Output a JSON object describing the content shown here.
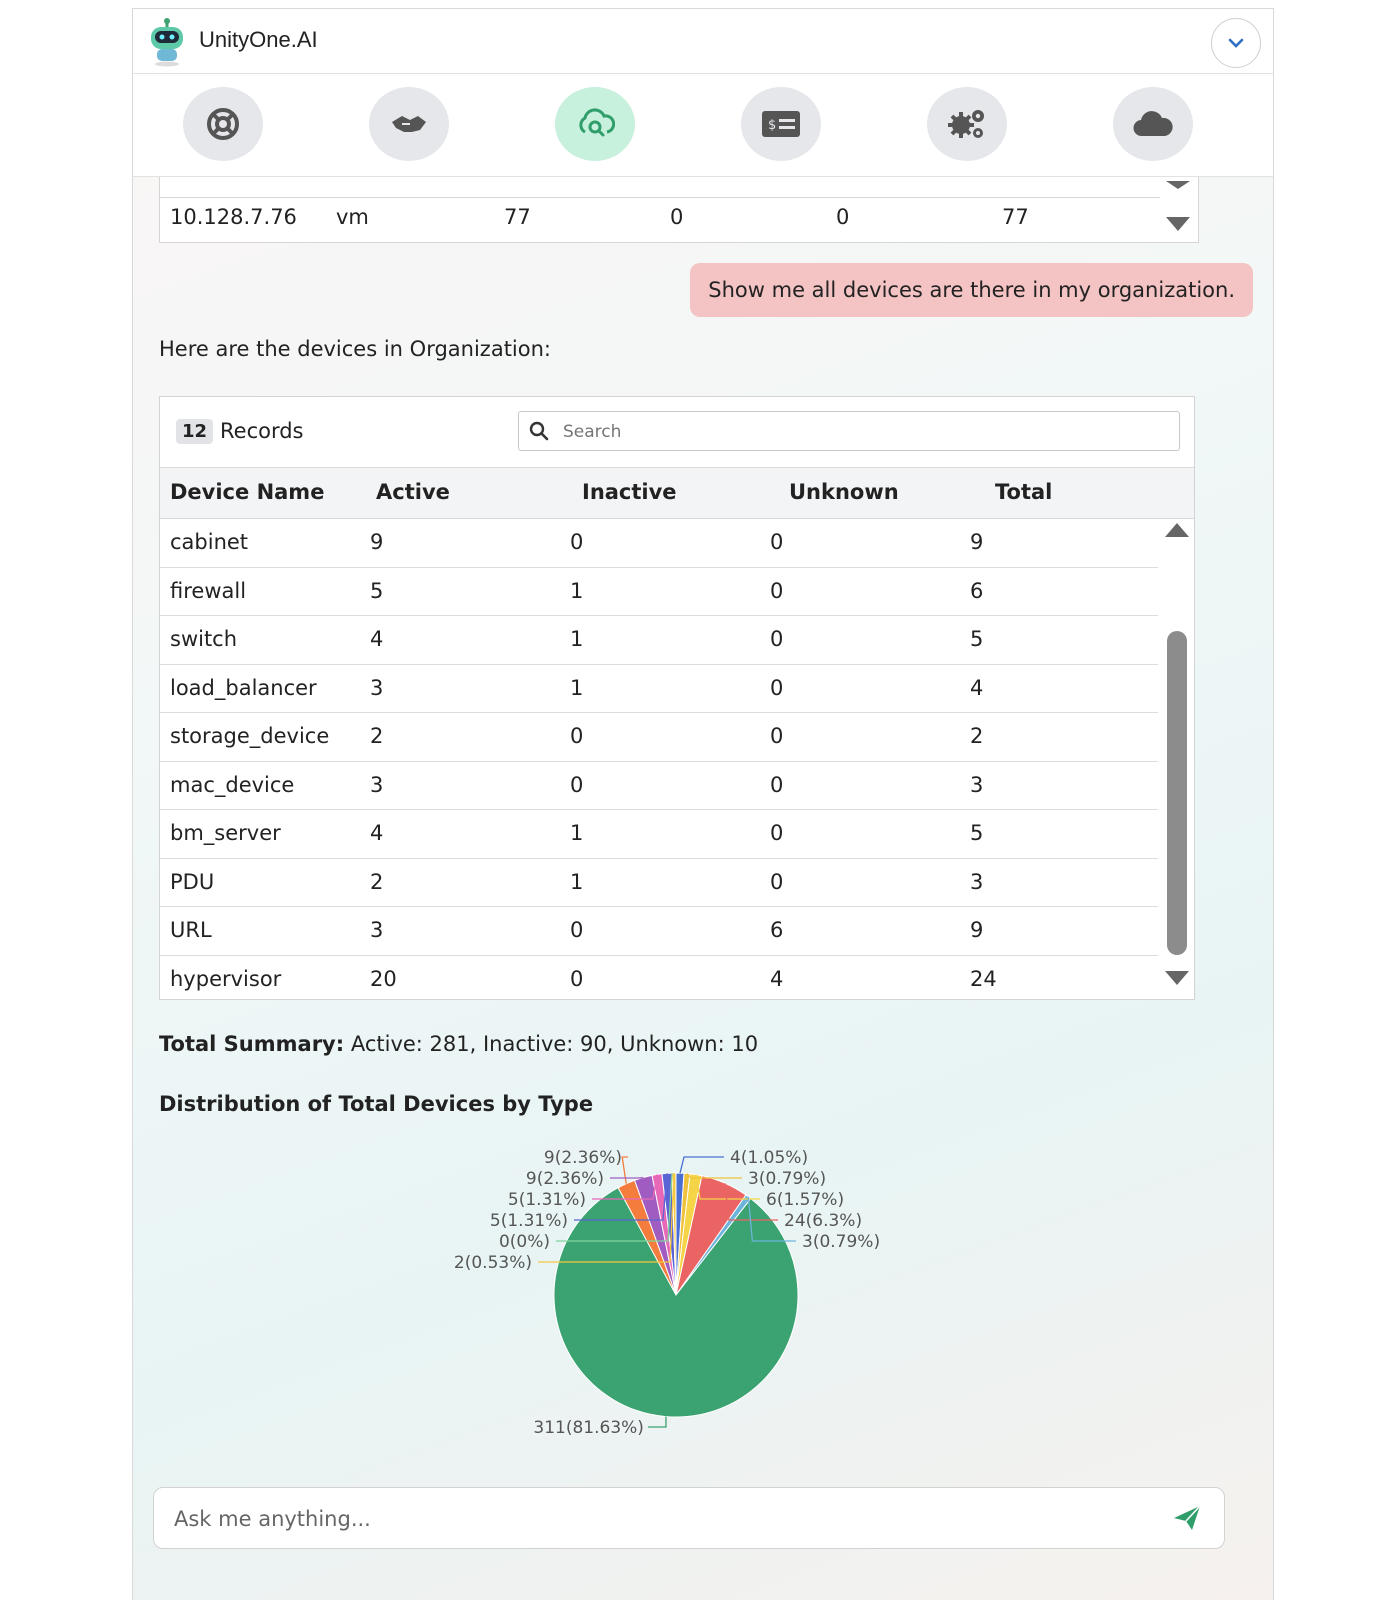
{
  "header": {
    "title": "UnityOne.AI",
    "logo_icon": "robot-icon",
    "collapse_icon": "chevron-down-icon"
  },
  "toolbar": {
    "buttons": [
      {
        "icon": "lifebuoy-icon",
        "active": false
      },
      {
        "icon": "handshake-icon",
        "active": false
      },
      {
        "icon": "cloud-search-icon",
        "active": true
      },
      {
        "icon": "billing-card-icon",
        "active": false
      },
      {
        "icon": "gears-icon",
        "active": false
      },
      {
        "icon": "cloud-icon",
        "active": false
      }
    ],
    "active_color": "#c7f0dd",
    "inactive_color": "#e5e7ea"
  },
  "previous_table": {
    "row": [
      "10.128.7.76",
      "vm",
      "77",
      "0",
      "0",
      "77"
    ]
  },
  "user_message": "Show me all devices are there in my organization.",
  "bot_intro": "Here are the devices in Organization:",
  "devices_table": {
    "record_count": "12",
    "records_label": "Records",
    "search_placeholder": "Search",
    "columns": [
      "Device Name",
      "Active",
      "Inactive",
      "Unknown",
      "Total"
    ],
    "rows": [
      [
        "cabinet",
        "9",
        "0",
        "0",
        "9"
      ],
      [
        "firewall",
        "5",
        "1",
        "0",
        "6"
      ],
      [
        "switch",
        "4",
        "1",
        "0",
        "5"
      ],
      [
        "load_balancer",
        "3",
        "1",
        "0",
        "4"
      ],
      [
        "storage_device",
        "2",
        "0",
        "0",
        "2"
      ],
      [
        "mac_device",
        "3",
        "0",
        "0",
        "3"
      ],
      [
        "bm_server",
        "4",
        "1",
        "0",
        "5"
      ],
      [
        "PDU",
        "2",
        "1",
        "0",
        "3"
      ],
      [
        "URL",
        "3",
        "0",
        "6",
        "9"
      ],
      [
        "hypervisor",
        "20",
        "0",
        "4",
        "24"
      ]
    ]
  },
  "summary": {
    "label": "Total Summary:",
    "text": "Active: 281, Inactive: 90, Unknown: 10"
  },
  "chart_title": "Distribution of Total Devices by Type",
  "chart_data": {
    "type": "pie",
    "slices": [
      {
        "label": "4(1.05%)",
        "value": 4,
        "color": "#4a6fd4"
      },
      {
        "label": "3(0.79%)",
        "value": 3,
        "color": "#f0c23b"
      },
      {
        "label": "6(1.57%)",
        "value": 6,
        "color": "#f5d447"
      },
      {
        "label": "24(6.3%)",
        "value": 24,
        "color": "#ea6464"
      },
      {
        "label": "3(0.79%)",
        "value": 3,
        "color": "#6cb4dc"
      },
      {
        "label": "311(81.63%)",
        "value": 311,
        "color": "#3aa371"
      },
      {
        "label": "9(2.36%)",
        "value": 9,
        "color": "#f47c3c"
      },
      {
        "label": "9(2.36%)",
        "value": 9,
        "color": "#a05cc0"
      },
      {
        "label": "5(1.31%)",
        "value": 5,
        "color": "#e868b8"
      },
      {
        "label": "5(1.31%)",
        "value": 5,
        "color": "#5a64d4"
      },
      {
        "label": "0(0%)",
        "value": 0,
        "color": "#7fd49a"
      },
      {
        "label": "2(0.53%)",
        "value": 2,
        "color": "#f5c842"
      }
    ]
  },
  "chat": {
    "placeholder": "Ask me anything...",
    "send_icon": "send-icon"
  }
}
